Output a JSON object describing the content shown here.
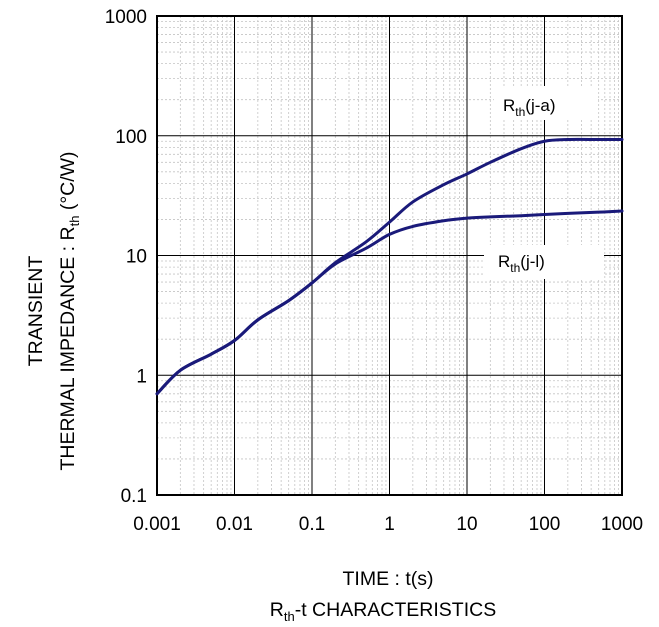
{
  "chart_data": {
    "type": "line",
    "x_scale": "log",
    "y_scale": "log",
    "xlim": [
      0.001,
      1000
    ],
    "ylim": [
      0.1,
      1000
    ],
    "grid": true,
    "x_ticks": [
      "0.001",
      "0.01",
      "0.1",
      "1",
      "10",
      "100",
      "1000"
    ],
    "y_ticks": [
      "0.1",
      "1",
      "10",
      "100",
      "1000"
    ],
    "xlabel": "TIME : t(s)",
    "ylabel_line1": "TRANSIENT",
    "ylabel_line2_main": "THERMAL IMPEDANCE : R",
    "ylabel_line2_sub": "th",
    "ylabel_line2_tail": " (°C/W)",
    "caption_main": "R",
    "caption_sub": "th",
    "caption_tail": "-t CHARACTERISTICS",
    "series": [
      {
        "label_main": "R",
        "label_sub": "th",
        "label_tail": "(j-a)",
        "color": "#1a1a7a",
        "x": [
          0.001,
          0.002,
          0.005,
          0.01,
          0.02,
          0.05,
          0.1,
          0.2,
          0.5,
          1,
          2,
          5,
          10,
          20,
          50,
          100,
          200,
          500,
          1000
        ],
        "y": [
          0.7,
          1.1,
          1.5,
          1.95,
          2.9,
          4.2,
          5.9,
          8.7,
          13,
          19,
          28,
          39,
          48,
          60,
          78,
          90,
          93,
          93,
          93
        ]
      },
      {
        "label_main": "R",
        "label_sub": "th",
        "label_tail": "(j-l)",
        "color": "#1a1a7a",
        "x": [
          0.001,
          0.002,
          0.005,
          0.01,
          0.02,
          0.05,
          0.1,
          0.2,
          0.5,
          1,
          2,
          5,
          10,
          20,
          50,
          100,
          200,
          500,
          1000
        ],
        "y": [
          0.7,
          1.1,
          1.5,
          1.95,
          2.9,
          4.2,
          5.9,
          8.5,
          11.5,
          15,
          17.5,
          19.5,
          20.5,
          21,
          21.5,
          22,
          22.5,
          23,
          23.5
        ]
      }
    ]
  }
}
